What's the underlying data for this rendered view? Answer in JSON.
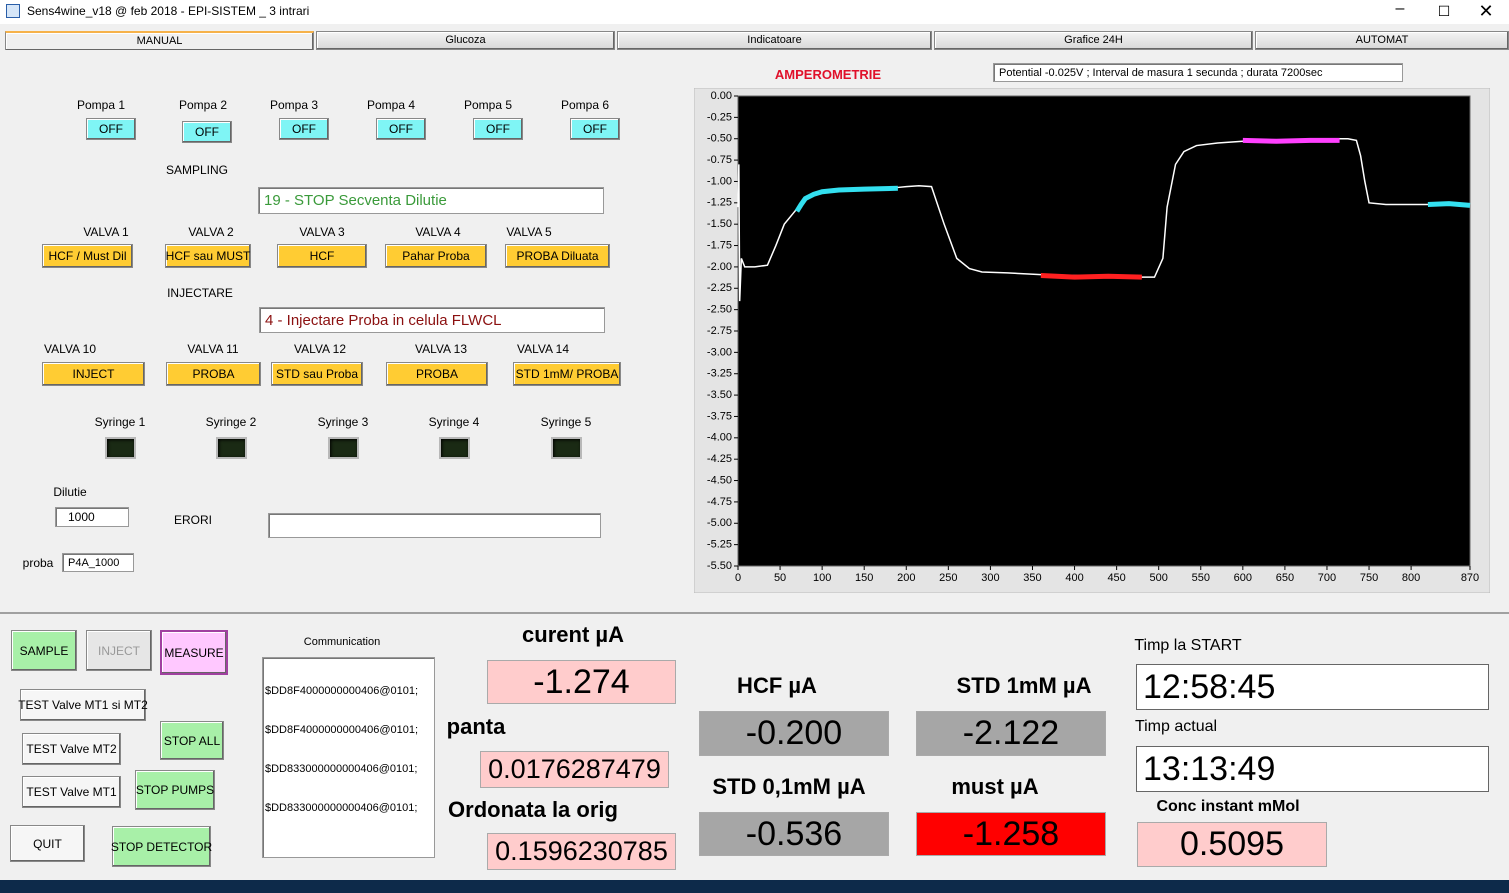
{
  "window": {
    "title": "Sens4wine_v18 @ feb 2018 - EPI-SISTEM _ 3 intrari"
  },
  "tabs": [
    "MANUAL",
    "Glucoza",
    "Indicatoare",
    "Grafice 24H",
    "AUTOMAT"
  ],
  "pumps": [
    {
      "label": "Pompa 1",
      "state": "OFF"
    },
    {
      "label": "Pompa 2",
      "state": "OFF"
    },
    {
      "label": "Pompa 3",
      "state": "OFF"
    },
    {
      "label": "Pompa 4",
      "state": "OFF"
    },
    {
      "label": "Pompa 5",
      "state": "OFF"
    },
    {
      "label": "Pompa 6",
      "state": "OFF"
    }
  ],
  "sampling": {
    "label": "SAMPLING",
    "status": "19 - STOP Secventa Dilutie"
  },
  "sampling_valves": [
    {
      "label": "VALVA 1",
      "button": "HCF / Must Dil"
    },
    {
      "label": "VALVA 2",
      "button": "HCF sau MUST"
    },
    {
      "label": "VALVA 3",
      "button": "HCF"
    },
    {
      "label": "VALVA 4",
      "button": "Pahar Proba"
    },
    {
      "label": "VALVA 5",
      "button": "PROBA Diluata"
    }
  ],
  "injection": {
    "label": "INJECTARE",
    "status": "4 - Injectare Proba in celula FLWCL"
  },
  "injection_valves": [
    {
      "label": "VALVA 10",
      "button": "INJECT"
    },
    {
      "label": "VALVA 11",
      "button": "PROBA"
    },
    {
      "label": "VALVA 12",
      "button": "STD sau Proba"
    },
    {
      "label": "VALVA 13",
      "button": "PROBA"
    },
    {
      "label": "VALVA 14",
      "button": "STD 1mM/ PROBA"
    }
  ],
  "syringes": [
    "Syringe 1",
    "Syringe 2",
    "Syringe 3",
    "Syringe 4",
    "Syringe 5"
  ],
  "dilution": {
    "label": "Dilutie",
    "value": "1000"
  },
  "errors": {
    "label": "ERORI"
  },
  "sample": {
    "label": "proba",
    "value": "P4A_1000"
  },
  "chart_data": {
    "type": "line",
    "title": "AMPEROMETRIE",
    "subtitle": "Potential -0.025V ; Interval de masura 1 secunda ; durata 7200sec",
    "xlim": [
      0,
      870
    ],
    "xticks": [
      0,
      50,
      100,
      150,
      200,
      250,
      300,
      350,
      400,
      450,
      500,
      550,
      600,
      650,
      700,
      750,
      800,
      870
    ],
    "ylim": [
      -5.5,
      0
    ],
    "yticks": [
      {
        "value": 0,
        "label": "0.00"
      },
      {
        "value": -0.25,
        "label": "-0.25"
      },
      {
        "value": -0.5,
        "label": "-0.50"
      },
      {
        "value": -0.75,
        "label": "-0.75"
      },
      {
        "value": -1,
        "label": "-1.00"
      },
      {
        "value": -1.25,
        "label": "-1.25"
      },
      {
        "value": -1.5,
        "label": "-1.50"
      },
      {
        "value": -1.75,
        "label": "-1.75"
      },
      {
        "value": -2,
        "label": "-2.00"
      },
      {
        "value": -2.25,
        "label": "-2.25"
      },
      {
        "value": -2.5,
        "label": "-2.50"
      },
      {
        "value": -2.75,
        "label": "-2.75"
      },
      {
        "value": -3,
        "label": "-3.00"
      },
      {
        "value": -3.25,
        "label": "-3.25"
      },
      {
        "value": -3.5,
        "label": "-3.50"
      },
      {
        "value": -3.75,
        "label": "-3.75"
      },
      {
        "value": -4,
        "label": "-4.00"
      },
      {
        "value": -4.25,
        "label": "-4.25"
      },
      {
        "value": -4.5,
        "label": "-4.50"
      },
      {
        "value": -4.75,
        "label": "-4.75"
      },
      {
        "value": -5,
        "label": "-5.00"
      },
      {
        "value": -5.25,
        "label": "-5.25"
      },
      {
        "value": -5.5,
        "label": "-5.50"
      }
    ],
    "grid": false,
    "background": "#000000",
    "series": [
      {
        "color": "#ffffff",
        "x": [
          0,
          1,
          2,
          4,
          8,
          20,
          35,
          45,
          55,
          65,
          70,
          80,
          100,
          150,
          190,
          200,
          215,
          230,
          245,
          260,
          275,
          290,
          320,
          360,
          400,
          450,
          480,
          495,
          505,
          510,
          520,
          530,
          545,
          570,
          600,
          650,
          700,
          715,
          725,
          735,
          740,
          745,
          750,
          770,
          800,
          820,
          870
        ],
        "values": [
          -1.3,
          -0.8,
          -2.4,
          -1.9,
          -2.0,
          -2.0,
          -1.98,
          -1.75,
          -1.5,
          -1.38,
          -1.32,
          -1.2,
          -1.12,
          -1.09,
          -1.07,
          -1.06,
          -1.05,
          -1.06,
          -1.5,
          -1.9,
          -2.02,
          -2.06,
          -2.07,
          -2.09,
          -2.1,
          -2.11,
          -2.12,
          -2.12,
          -1.9,
          -1.3,
          -0.8,
          -0.65,
          -0.58,
          -0.55,
          -0.53,
          -0.52,
          -0.52,
          -0.5,
          -0.5,
          -0.52,
          -0.7,
          -1.0,
          -1.25,
          -1.27,
          -1.27,
          -1.27,
          -1.28
        ]
      },
      {
        "color": "#33e0f0",
        "x": [
          70,
          75,
          80,
          90,
          100,
          120,
          150,
          190
        ],
        "values": [
          -1.35,
          -1.27,
          -1.2,
          -1.15,
          -1.12,
          -1.1,
          -1.09,
          -1.08
        ]
      },
      {
        "color": "#ff2020",
        "x": [
          360,
          400,
          440,
          480
        ],
        "values": [
          -2.1,
          -2.12,
          -2.11,
          -2.12
        ]
      },
      {
        "color": "#ff40ff",
        "x": [
          600,
          640,
          680,
          715
        ],
        "values": [
          -0.52,
          -0.53,
          -0.52,
          -0.52
        ]
      },
      {
        "color": "#33e0f0",
        "x": [
          820,
          845,
          870
        ],
        "values": [
          -1.27,
          -1.26,
          -1.28
        ]
      }
    ]
  },
  "controls": [
    "SAMPLE",
    "INJECT",
    "MEASURE",
    "TEST Valve MT1 si MT2",
    "STOP ALL",
    "TEST Valve MT2",
    "TEST Valve MT1",
    "STOP PUMPS",
    "QUIT",
    "STOP DETECTOR"
  ],
  "communication": {
    "label": "Communication",
    "lines": [
      "$DD8F4000000000406@0101;",
      "$DD8F4000000000406@0101;",
      "$DD833000000000406@0101;",
      "$DD833000000000406@0101;"
    ]
  },
  "readouts": [
    {
      "label": "curent µA",
      "value": "-1.274"
    },
    {
      "label": "panta",
      "value": "0.0176287479"
    },
    {
      "label": "Ordonata la orig",
      "value": "0.1596230785"
    },
    {
      "label": "HCF µA",
      "value": "-0.200"
    },
    {
      "label": "STD 1mM µA",
      "value": "-2.122"
    },
    {
      "label": "STD 0,1mM µA",
      "value": "-0.536"
    },
    {
      "label": "must µA",
      "value": "-1.258"
    },
    {
      "label": "Timp la START",
      "value": "12:58:45"
    },
    {
      "label": "Timp actual",
      "value": "13:13:49"
    },
    {
      "label": "Conc instant mMol",
      "value": "0.5095"
    }
  ]
}
